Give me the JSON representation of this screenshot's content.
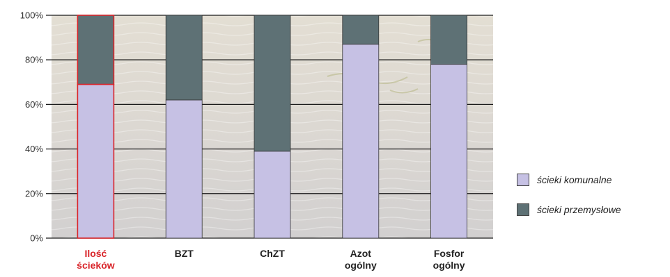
{
  "chart_data": {
    "type": "bar",
    "stacked": true,
    "normalized": true,
    "categories": [
      [
        "Ilość",
        "ścieków"
      ],
      [
        "BZT"
      ],
      [
        "ChZT"
      ],
      [
        "Azot",
        "ogólny"
      ],
      [
        "Fosfor",
        "ogólny"
      ]
    ],
    "highlight_category": 0,
    "series": [
      {
        "name": "ścieki komunalne",
        "values": [
          69,
          62,
          39,
          87,
          78
        ],
        "color": "#c6c1e4"
      },
      {
        "name": "ścieki przemysłowe",
        "values": [
          31,
          38,
          61,
          13,
          22
        ],
        "color": "#5e7175"
      }
    ],
    "yticks": [
      "0%",
      "20%",
      "40%",
      "60%",
      "80%",
      "100%"
    ],
    "ylim": [
      0,
      100
    ],
    "grid": true,
    "legend_position": "right",
    "colors": {
      "highlight": "#d9252a",
      "grid": "#1a1a1a"
    }
  }
}
